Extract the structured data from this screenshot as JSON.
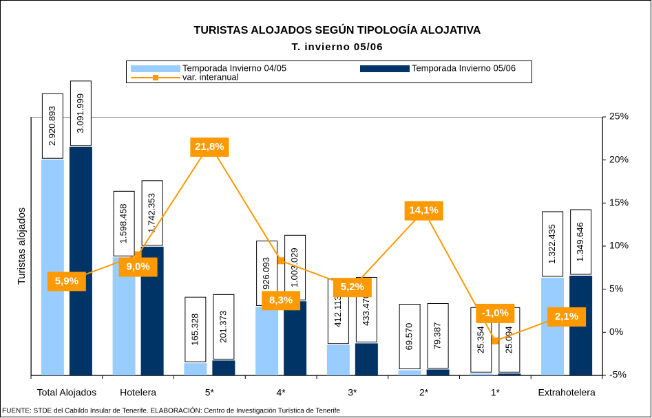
{
  "chart_data": {
    "type": "bar",
    "title": "TURISTAS ALOJADOS SEGÚN TIPOLOGÍA ALOJATIVA",
    "subtitle": "T. invierno 05/06",
    "ylabel": "Turistas alojados",
    "source": "FUENTE: STDE del Cabildo Insular de Tenerife. ELABORACIÓN: Centro de Investigación Turística de Tenerife",
    "categories": [
      "Total Alojados",
      "Hotelera",
      "5*",
      "4*",
      "3*",
      "2*",
      "1*",
      "Extrahotelera"
    ],
    "ylim": [
      0,
      3500000
    ],
    "y2lim": [
      -5,
      25
    ],
    "y2ticks": [
      {
        "value": -5,
        "label": "-5%"
      },
      {
        "value": 0,
        "label": "0%"
      },
      {
        "value": 5,
        "label": "5%"
      },
      {
        "value": 10,
        "label": "10%"
      },
      {
        "value": 15,
        "label": "15%"
      },
      {
        "value": 20,
        "label": "20%"
      },
      {
        "value": 25,
        "label": "25%"
      }
    ],
    "series": [
      {
        "name": "Temporada Invierno 04/05",
        "color": "#99ccff",
        "values": [
          2920893,
          1598458,
          165328,
          926093,
          412113,
          69570,
          25354,
          1322435
        ],
        "value_labels": [
          "2.920.893",
          "1.598.458",
          "165.328",
          "926.093",
          "412.113",
          "69.570",
          "25.354",
          "1.322.435"
        ]
      },
      {
        "name": "Temporada Invierno 05/06",
        "color": "#003366",
        "values": [
          3091999,
          1742353,
          201373,
          1003029,
          433470,
          79387,
          25094,
          1349646
        ],
        "value_labels": [
          "3.091.999",
          "1.742.353",
          "201.373",
          "1.003.029",
          "433.470",
          "79.387",
          "25.094",
          "1.349.646"
        ]
      },
      {
        "name": "var. interanual",
        "color": "#ff9900",
        "type": "line",
        "axis": "y2",
        "values": [
          5.9,
          9.0,
          21.8,
          8.3,
          5.2,
          14.1,
          -1.0,
          2.1
        ],
        "value_labels": [
          "5,9%",
          "9,0%",
          "21,8%",
          "8,3%",
          "5,2%",
          "14,1%",
          "-1,0%",
          "2,1%"
        ]
      }
    ]
  }
}
